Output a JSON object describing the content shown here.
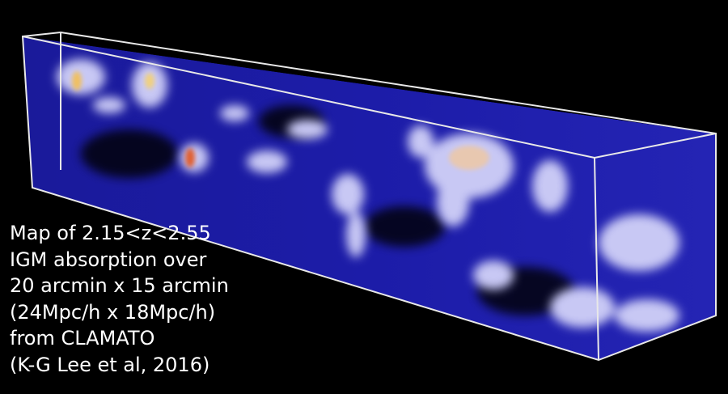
{
  "caption": {
    "lines": [
      "Map of 2.15<z<2.55",
      "IGM absorption over",
      "20 arcmin x 15 arcmin",
      "(24Mpc/h x 18Mpc/h)",
      "from CLAMATO",
      "(K-G Lee et al, 2016)"
    ]
  }
}
